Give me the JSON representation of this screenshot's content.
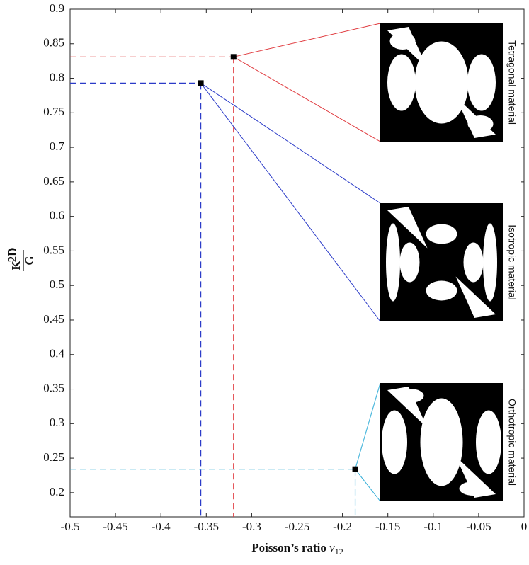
{
  "chart_data": {
    "type": "scatter",
    "x_label": {
      "text": "Poisson’s ratio",
      "symbol": "ν",
      "subscript": "12"
    },
    "y_label": {
      "numerator": "K",
      "superscript": "2D",
      "denominator": "G"
    },
    "xlim": [
      -0.5,
      0
    ],
    "xticks": [
      -0.5,
      -0.45,
      -0.4,
      -0.35,
      -0.3,
      -0.25,
      -0.2,
      -0.15,
      -0.1,
      -0.05,
      0
    ],
    "ylim": [
      0.165,
      0.9
    ],
    "yticks": [
      0.2,
      0.25,
      0.3,
      0.35,
      0.4,
      0.45,
      0.5,
      0.55,
      0.6,
      0.65,
      0.7,
      0.75,
      0.8,
      0.85,
      0.9
    ],
    "series": [
      {
        "name": "Tetragonal material",
        "color": "#e03a3e",
        "x": [
          -0.32
        ],
        "values": [
          0.831
        ]
      },
      {
        "name": "Isotropic material",
        "color": "#2b3bc8",
        "x": [
          -0.356
        ],
        "values": [
          0.793
        ]
      },
      {
        "name": "Orthotropic material",
        "color": "#2aaad6",
        "x": [
          -0.186
        ],
        "values": [
          0.234
        ]
      }
    ]
  }
}
